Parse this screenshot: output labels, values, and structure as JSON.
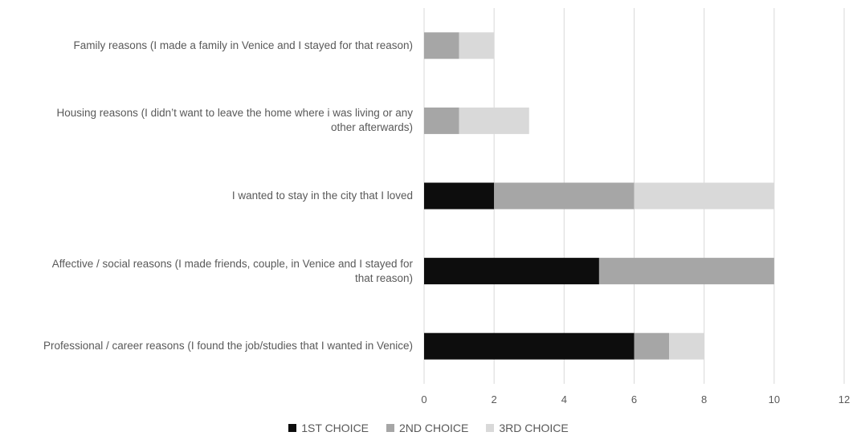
{
  "chart_data": {
    "type": "bar",
    "orientation": "horizontal",
    "stacked": true,
    "categories": [
      "Family reasons (I made a family in Venice and I stayed for that reason)",
      "Housing reasons (I didn’t want to leave the home where i was living or any other afterwards)",
      "I wanted to stay in the city that I loved",
      "Affective / social reasons (I made friends, couple, in Venice and I stayed for that reason)",
      "Professional / career reasons (I found the job/studies that I wanted in Venice)"
    ],
    "category_lines": [
      [
        "Family reasons (I made a family in Venice and I stayed for that reason)"
      ],
      [
        "Housing reasons (I didn’t want to leave the home where i was living or any",
        "other afterwards)"
      ],
      [
        "I wanted to stay in the city that I loved"
      ],
      [
        "Affective / social reasons (I made friends, couple, in Venice and I stayed for",
        "that reason)"
      ],
      [
        "Professional / career reasons (I found the job/studies that I wanted in Venice)"
      ]
    ],
    "series": [
      {
        "name": "1ST CHOICE",
        "values": [
          0,
          0,
          2,
          5,
          6
        ],
        "color": "#0d0d0d"
      },
      {
        "name": "2ND CHOICE",
        "values": [
          1,
          1,
          4,
          5,
          1
        ],
        "color": "#a6a6a6"
      },
      {
        "name": "3RD CHOICE",
        "values": [
          1,
          2,
          4,
          0,
          1
        ],
        "color": "#d9d9d9"
      }
    ],
    "xlim": [
      0,
      12
    ],
    "xticks": [
      "0",
      "2",
      "4",
      "6",
      "8",
      "10",
      "12"
    ],
    "grid": true,
    "legend_position": "bottom"
  }
}
